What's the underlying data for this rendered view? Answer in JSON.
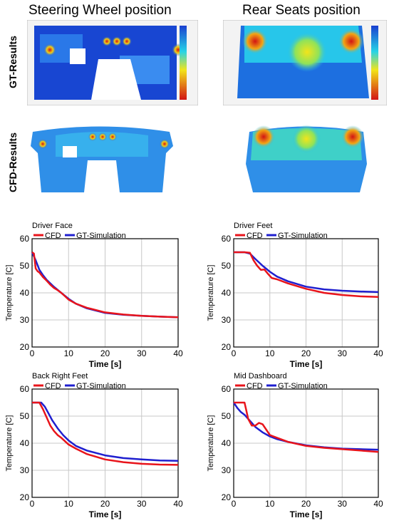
{
  "headers": {
    "left": "Steering Wheel position",
    "right": "Rear Seats position"
  },
  "row_labels": {
    "gt": "GT-Results",
    "cfd": "CFD-Results"
  },
  "colors": {
    "cfd": "#e8141b",
    "gt": "#1f1fcf"
  },
  "chart_data": [
    {
      "type": "line",
      "title": "Driver Face",
      "xlabel": "Time [s]",
      "ylabel": "Temperature [C]",
      "xlim": [
        0,
        40
      ],
      "ylim": [
        20,
        60
      ],
      "xticks": [
        0,
        10,
        20,
        30,
        40
      ],
      "yticks": [
        20,
        30,
        40,
        50,
        60
      ],
      "grid": true,
      "legend": "top",
      "series": [
        {
          "name": "CFD",
          "x": [
            0,
            0.5,
            1,
            1.5,
            2,
            3,
            4,
            5,
            6,
            7,
            8,
            9,
            10,
            12,
            15,
            20,
            25,
            30,
            35,
            40
          ],
          "y": [
            55,
            54.5,
            49,
            48,
            47.5,
            45.8,
            44.5,
            43,
            41.8,
            41,
            40,
            38.8,
            37.5,
            36,
            34.5,
            32.8,
            32,
            31.5,
            31.2,
            31
          ]
        },
        {
          "name": "GT-Simulation",
          "x": [
            0,
            1,
            2,
            3,
            4,
            5,
            6,
            8,
            10,
            12,
            15,
            20,
            25,
            30,
            35,
            40
          ],
          "y": [
            55,
            52,
            48.5,
            46.5,
            44.8,
            43.5,
            42.2,
            40,
            37.8,
            36,
            34.3,
            32.6,
            31.9,
            31.5,
            31.2,
            31
          ]
        }
      ]
    },
    {
      "type": "line",
      "title": "Driver Feet",
      "xlabel": "Time [s]",
      "ylabel": "Temperature [C]",
      "xlim": [
        0,
        40
      ],
      "ylim": [
        20,
        60
      ],
      "xticks": [
        0,
        10,
        20,
        30,
        40
      ],
      "yticks": [
        20,
        30,
        40,
        50,
        60
      ],
      "grid": true,
      "legend": "top",
      "series": [
        {
          "name": "CFD",
          "x": [
            0,
            3,
            4.5,
            5.5,
            6.5,
            7.5,
            8.5,
            9.5,
            10.5,
            12,
            15,
            20,
            25,
            30,
            35,
            40
          ],
          "y": [
            55,
            55,
            54.8,
            52,
            50,
            48.5,
            48.6,
            47,
            45.5,
            45,
            43.5,
            41.5,
            40,
            39.2,
            38.7,
            38.5
          ]
        },
        {
          "name": "GT-Simulation",
          "x": [
            0,
            3,
            4.5,
            6,
            8,
            10,
            12,
            15,
            20,
            25,
            30,
            35,
            40
          ],
          "y": [
            55,
            55,
            54.5,
            52.5,
            50,
            47.8,
            46,
            44.3,
            42.3,
            41.3,
            40.8,
            40.5,
            40.3
          ]
        }
      ]
    },
    {
      "type": "line",
      "title": "Back Right Feet",
      "xlabel": "Time [s]",
      "ylabel": "Temperature [C]",
      "xlim": [
        0,
        40
      ],
      "ylim": [
        20,
        60
      ],
      "xticks": [
        0,
        10,
        20,
        30,
        40
      ],
      "yticks": [
        20,
        30,
        40,
        50,
        60
      ],
      "grid": true,
      "legend": "top",
      "series": [
        {
          "name": "CFD",
          "x": [
            0,
            2,
            3,
            4,
            5,
            6,
            7,
            8,
            10,
            12,
            15,
            20,
            25,
            30,
            35,
            40
          ],
          "y": [
            55,
            55,
            52.5,
            49.5,
            46.5,
            44.5,
            43,
            42,
            39.5,
            38,
            36,
            34,
            33,
            32.4,
            32.1,
            32
          ]
        },
        {
          "name": "GT-Simulation",
          "x": [
            0,
            2.5,
            3.5,
            4.5,
            5.5,
            7,
            8.5,
            10,
            12,
            15,
            20,
            25,
            30,
            35,
            40
          ],
          "y": [
            55,
            55,
            53.5,
            51,
            48.5,
            45.5,
            43,
            41,
            39,
            37.3,
            35.5,
            34.5,
            34,
            33.6,
            33.5
          ]
        }
      ]
    },
    {
      "type": "line",
      "title": "Mid Dashboard",
      "xlabel": "Time [s]",
      "ylabel": "Temperature [C]",
      "xlim": [
        0,
        40
      ],
      "ylim": [
        20,
        60
      ],
      "xticks": [
        0,
        10,
        20,
        30,
        40
      ],
      "yticks": [
        20,
        30,
        40,
        50,
        60
      ],
      "grid": true,
      "legend": "top",
      "series": [
        {
          "name": "CFD",
          "x": [
            0,
            3,
            3.5,
            4,
            5,
            6,
            7,
            8,
            9,
            10,
            12,
            15,
            20,
            25,
            30,
            35,
            40
          ],
          "y": [
            55,
            55,
            52,
            49,
            46.5,
            46.5,
            47.5,
            47,
            45,
            43,
            42,
            40.5,
            39,
            38.3,
            37.8,
            37.3,
            36.8
          ]
        },
        {
          "name": "GT-Simulation",
          "x": [
            0,
            1,
            2,
            3,
            4,
            5,
            6,
            8,
            10,
            12,
            15,
            20,
            25,
            30,
            35,
            40
          ],
          "y": [
            55,
            53,
            51.5,
            50.5,
            49,
            47.5,
            46,
            44,
            42.5,
            41.5,
            40.5,
            39.2,
            38.5,
            38,
            37.8,
            37.6
          ]
        }
      ]
    }
  ]
}
